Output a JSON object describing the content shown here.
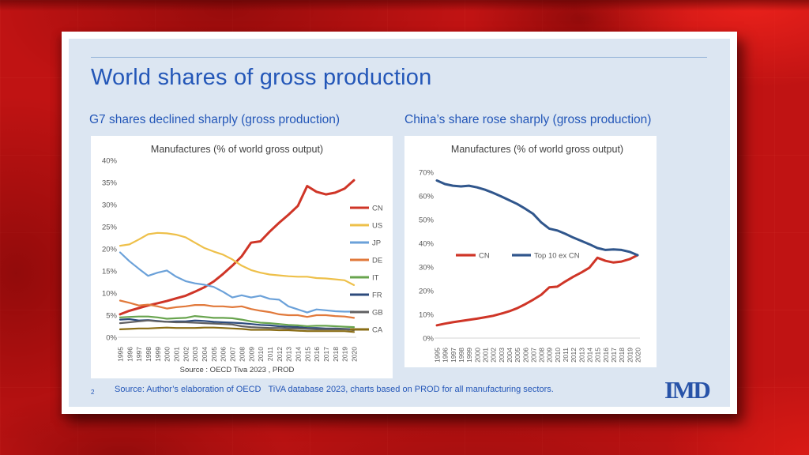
{
  "slide": {
    "page_number": "2",
    "title": "World shares of gross production",
    "left_heading": "G7 shares declined sharply (gross production)",
    "right_heading": "China’s share rose sharply (gross production)",
    "footer_source": "Source: Author’s elaboration of OECD   TiVA database 2023, charts based on PROD for all manufacturing sectors.",
    "logo_text": "IMD"
  },
  "colors": {
    "background_red": "#c01313",
    "slide_blue": "#dce6f2",
    "accent_blue": "#2457b8",
    "logo_blue": "#2853a8",
    "chart_title_gray": "#404040",
    "axis_gray": "#595959",
    "baseline_gray": "#d6d6d6"
  },
  "chart_data": [
    {
      "type": "line",
      "title": "Manufactures (% of world gross output)",
      "source_note": "Source : OECD Tiva 2023 , PROD",
      "ylim": [
        0,
        40
      ],
      "ytick_step": 5,
      "legend_position": "right",
      "grid": false,
      "x": [
        1995,
        1996,
        1997,
        1998,
        1999,
        2000,
        2001,
        2002,
        2003,
        2004,
        2005,
        2006,
        2007,
        2008,
        2009,
        2010,
        2011,
        2012,
        2013,
        2014,
        2015,
        2016,
        2017,
        2018,
        2019,
        2020
      ],
      "series": [
        {
          "name": "CN",
          "color": "#cf3527",
          "values": [
            5.2,
            6.0,
            6.6,
            7.2,
            7.7,
            8.2,
            8.8,
            9.4,
            10.3,
            11.3,
            12.6,
            14.3,
            16.2,
            18.3,
            21.4,
            21.7,
            23.9,
            25.9,
            27.7,
            29.7,
            34.2,
            32.9,
            32.3,
            32.7,
            33.6,
            35.5
          ]
        },
        {
          "name": "US",
          "color": "#eec04a",
          "values": [
            20.7,
            21.0,
            22.1,
            23.3,
            23.6,
            23.5,
            23.2,
            22.6,
            21.4,
            20.2,
            19.4,
            18.7,
            17.6,
            16.2,
            15.2,
            14.6,
            14.2,
            14.0,
            13.8,
            13.7,
            13.7,
            13.4,
            13.3,
            13.1,
            12.9,
            11.8
          ]
        },
        {
          "name": "JP",
          "color": "#6ba1d9",
          "values": [
            19.2,
            17.2,
            15.5,
            13.9,
            14.6,
            15.1,
            13.7,
            12.7,
            12.2,
            11.9,
            11.4,
            10.3,
            9.0,
            9.5,
            9.0,
            9.4,
            8.7,
            8.5,
            7.0,
            6.3,
            5.6,
            6.3,
            6.1,
            5.9,
            5.8,
            5.8
          ]
        },
        {
          "name": "DE",
          "color": "#e1793b",
          "values": [
            8.3,
            7.8,
            7.2,
            7.4,
            7.0,
            6.5,
            6.8,
            7.0,
            7.3,
            7.3,
            7.0,
            7.0,
            6.8,
            7.0,
            6.4,
            6.0,
            5.7,
            5.2,
            5.0,
            5.0,
            4.6,
            5.0,
            5.0,
            4.8,
            4.7,
            4.4
          ]
        },
        {
          "name": "IT",
          "color": "#68a44e",
          "values": [
            4.5,
            4.6,
            4.7,
            4.7,
            4.5,
            4.2,
            4.3,
            4.4,
            4.8,
            4.6,
            4.4,
            4.4,
            4.3,
            4.0,
            3.6,
            3.3,
            3.2,
            3.0,
            2.8,
            2.7,
            2.5,
            2.6,
            2.6,
            2.5,
            2.4,
            2.3
          ]
        },
        {
          "name": "FR",
          "color": "#2d4b7c",
          "values": [
            4.0,
            4.1,
            3.8,
            3.9,
            3.7,
            3.5,
            3.6,
            3.6,
            3.8,
            3.7,
            3.5,
            3.4,
            3.3,
            3.2,
            3.0,
            2.8,
            2.7,
            2.5,
            2.4,
            2.3,
            2.1,
            2.1,
            2.0,
            2.0,
            1.9,
            1.8
          ]
        },
        {
          "name": "GB",
          "color": "#606062",
          "values": [
            3.2,
            3.4,
            3.6,
            3.8,
            3.6,
            3.5,
            3.4,
            3.4,
            3.3,
            3.2,
            3.1,
            3.0,
            2.9,
            2.5,
            2.3,
            2.2,
            2.1,
            2.1,
            2.0,
            2.0,
            1.9,
            1.8,
            1.8,
            1.8,
            1.8,
            1.6
          ]
        },
        {
          "name": "CA",
          "color": "#8a6d15",
          "values": [
            1.8,
            1.9,
            2.0,
            2.0,
            2.1,
            2.2,
            2.1,
            2.1,
            2.1,
            2.2,
            2.2,
            2.1,
            2.0,
            1.9,
            1.7,
            1.7,
            1.7,
            1.6,
            1.6,
            1.5,
            1.4,
            1.4,
            1.4,
            1.4,
            1.4,
            1.2
          ]
        }
      ]
    },
    {
      "type": "line",
      "title": "Manufactures (% of world gross output)",
      "ylim": [
        0,
        70
      ],
      "ytick_step": 10,
      "legend_position": "inside",
      "grid": false,
      "x": [
        1995,
        1996,
        1997,
        1998,
        1999,
        2000,
        2001,
        2002,
        2003,
        2004,
        2005,
        2006,
        2007,
        2008,
        2009,
        2010,
        2011,
        2012,
        2013,
        2014,
        2015,
        2016,
        2017,
        2018,
        2019,
        2020
      ],
      "series": [
        {
          "name": "CN",
          "color": "#cf3527",
          "values": [
            5.4,
            6.1,
            6.7,
            7.2,
            7.7,
            8.2,
            8.8,
            9.4,
            10.3,
            11.3,
            12.6,
            14.3,
            16.2,
            18.3,
            21.4,
            21.7,
            23.9,
            25.9,
            27.7,
            29.7,
            33.9,
            32.6,
            31.9,
            32.3,
            33.3,
            35.0
          ]
        },
        {
          "name": "Top 10 ex CN",
          "color": "#30568c",
          "values": [
            66.5,
            65.0,
            64.3,
            64.0,
            64.3,
            63.6,
            62.6,
            61.3,
            59.8,
            58.2,
            56.6,
            54.6,
            52.4,
            48.8,
            46.2,
            45.4,
            44.0,
            42.4,
            41.0,
            39.6,
            38.0,
            37.2,
            37.4,
            37.2,
            36.4,
            35.0
          ]
        }
      ]
    }
  ]
}
